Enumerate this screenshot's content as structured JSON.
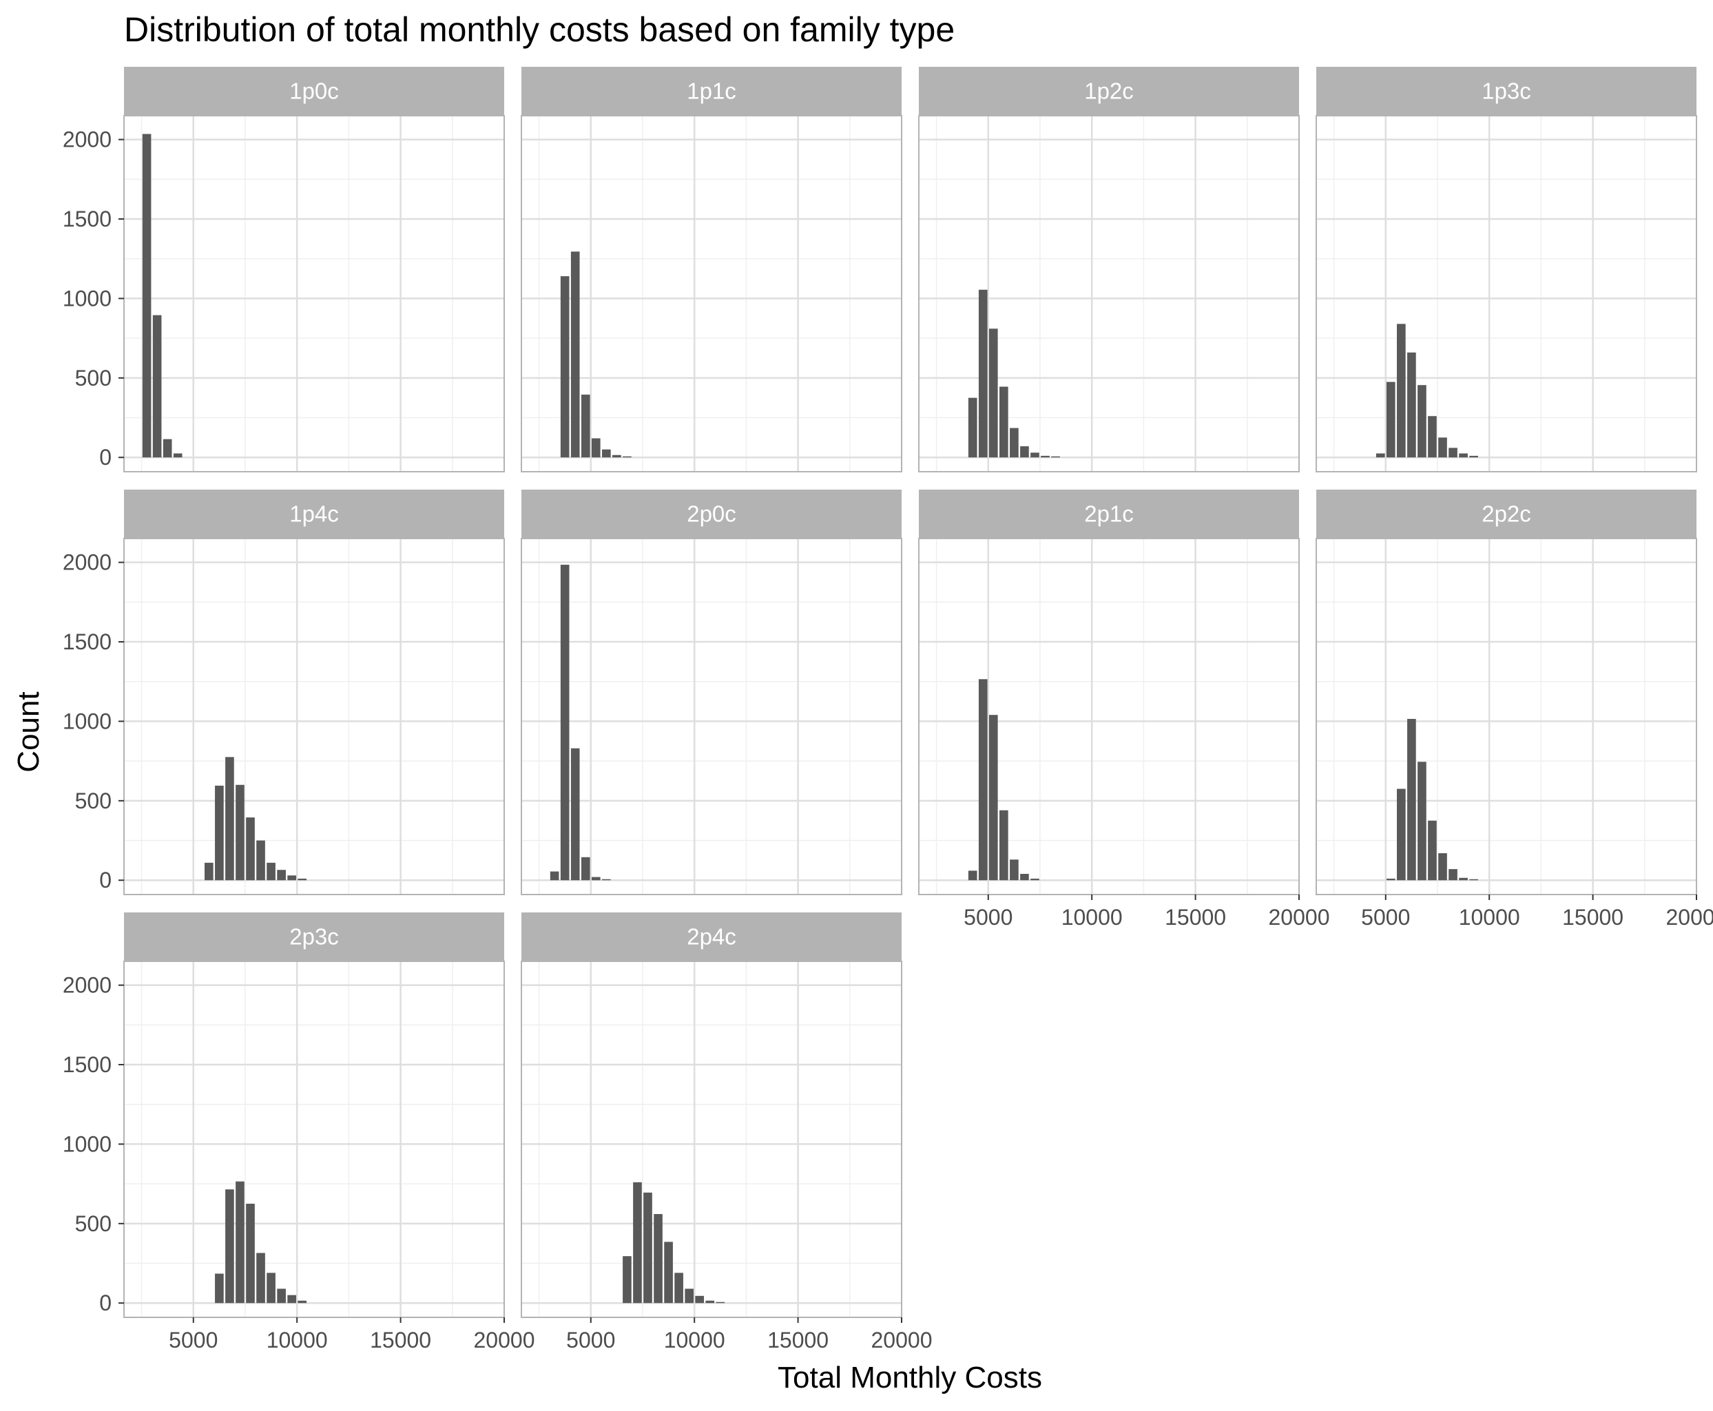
{
  "chart_data": {
    "type": "bar",
    "title": "Distribution of total monthly costs based on family type",
    "xlabel": "Total Monthly Costs",
    "ylabel": "Count",
    "xlim": [
      1650,
      20000
    ],
    "ylim": [
      -90,
      2150
    ],
    "x_ticks": [
      5000,
      10000,
      15000,
      20000
    ],
    "y_ticks": [
      0,
      500,
      1000,
      1500,
      2000
    ],
    "bin_width": 500,
    "grid": true,
    "facet_layout": "4 columns x 3 rows, shared axes",
    "colors": {
      "bar": "#595959",
      "strip": "#b3b3b3",
      "strip_text": "#ffffff",
      "grid_major": "#dedede",
      "grid_minor": "#efefef",
      "panel_border": "#b3b3b3"
    },
    "panels": [
      {
        "label": "1p0c",
        "bins": [
          {
            "x": 2750,
            "count": 2035
          },
          {
            "x": 3250,
            "count": 895
          },
          {
            "x": 3750,
            "count": 115
          },
          {
            "x": 4250,
            "count": 25
          }
        ]
      },
      {
        "label": "1p1c",
        "bins": [
          {
            "x": 3750,
            "count": 1140
          },
          {
            "x": 4250,
            "count": 1295
          },
          {
            "x": 4750,
            "count": 395
          },
          {
            "x": 5250,
            "count": 120
          },
          {
            "x": 5750,
            "count": 50
          },
          {
            "x": 6250,
            "count": 15
          },
          {
            "x": 6750,
            "count": 5
          }
        ]
      },
      {
        "label": "1p2c",
        "bins": [
          {
            "x": 4250,
            "count": 375
          },
          {
            "x": 4750,
            "count": 1055
          },
          {
            "x": 5250,
            "count": 810
          },
          {
            "x": 5750,
            "count": 445
          },
          {
            "x": 6250,
            "count": 185
          },
          {
            "x": 6750,
            "count": 70
          },
          {
            "x": 7250,
            "count": 30
          },
          {
            "x": 7750,
            "count": 10
          },
          {
            "x": 8250,
            "count": 3
          }
        ]
      },
      {
        "label": "1p3c",
        "bins": [
          {
            "x": 4750,
            "count": 25
          },
          {
            "x": 5250,
            "count": 475
          },
          {
            "x": 5750,
            "count": 840
          },
          {
            "x": 6250,
            "count": 660
          },
          {
            "x": 6750,
            "count": 455
          },
          {
            "x": 7250,
            "count": 260
          },
          {
            "x": 7750,
            "count": 125
          },
          {
            "x": 8250,
            "count": 60
          },
          {
            "x": 8750,
            "count": 25
          },
          {
            "x": 9250,
            "count": 10
          }
        ]
      },
      {
        "label": "1p4c",
        "bins": [
          {
            "x": 5750,
            "count": 110
          },
          {
            "x": 6250,
            "count": 595
          },
          {
            "x": 6750,
            "count": 775
          },
          {
            "x": 7250,
            "count": 600
          },
          {
            "x": 7750,
            "count": 395
          },
          {
            "x": 8250,
            "count": 250
          },
          {
            "x": 8750,
            "count": 110
          },
          {
            "x": 9250,
            "count": 65
          },
          {
            "x": 9750,
            "count": 30
          },
          {
            "x": 10250,
            "count": 10
          }
        ]
      },
      {
        "label": "2p0c",
        "bins": [
          {
            "x": 3250,
            "count": 55
          },
          {
            "x": 3750,
            "count": 1985
          },
          {
            "x": 4250,
            "count": 830
          },
          {
            "x": 4750,
            "count": 145
          },
          {
            "x": 5250,
            "count": 20
          },
          {
            "x": 5750,
            "count": 5
          }
        ]
      },
      {
        "label": "2p1c",
        "bins": [
          {
            "x": 4250,
            "count": 60
          },
          {
            "x": 4750,
            "count": 1265
          },
          {
            "x": 5250,
            "count": 1040
          },
          {
            "x": 5750,
            "count": 440
          },
          {
            "x": 6250,
            "count": 130
          },
          {
            "x": 6750,
            "count": 40
          },
          {
            "x": 7250,
            "count": 10
          }
        ]
      },
      {
        "label": "2p2c",
        "bins": [
          {
            "x": 5250,
            "count": 10
          },
          {
            "x": 5750,
            "count": 575
          },
          {
            "x": 6250,
            "count": 1015
          },
          {
            "x": 6750,
            "count": 745
          },
          {
            "x": 7250,
            "count": 375
          },
          {
            "x": 7750,
            "count": 170
          },
          {
            "x": 8250,
            "count": 70
          },
          {
            "x": 8750,
            "count": 15
          },
          {
            "x": 9250,
            "count": 5
          }
        ]
      },
      {
        "label": "2p3c",
        "bins": [
          {
            "x": 6250,
            "count": 185
          },
          {
            "x": 6750,
            "count": 715
          },
          {
            "x": 7250,
            "count": 765
          },
          {
            "x": 7750,
            "count": 625
          },
          {
            "x": 8250,
            "count": 315
          },
          {
            "x": 8750,
            "count": 190
          },
          {
            "x": 9250,
            "count": 90
          },
          {
            "x": 9750,
            "count": 50
          },
          {
            "x": 10250,
            "count": 15
          }
        ]
      },
      {
        "label": "2p4c",
        "bins": [
          {
            "x": 6750,
            "count": 295
          },
          {
            "x": 7250,
            "count": 760
          },
          {
            "x": 7750,
            "count": 695
          },
          {
            "x": 8250,
            "count": 560
          },
          {
            "x": 8750,
            "count": 385
          },
          {
            "x": 9250,
            "count": 190
          },
          {
            "x": 9750,
            "count": 90
          },
          {
            "x": 10250,
            "count": 45
          },
          {
            "x": 10750,
            "count": 15
          },
          {
            "x": 11250,
            "count": 5
          }
        ]
      }
    ]
  }
}
